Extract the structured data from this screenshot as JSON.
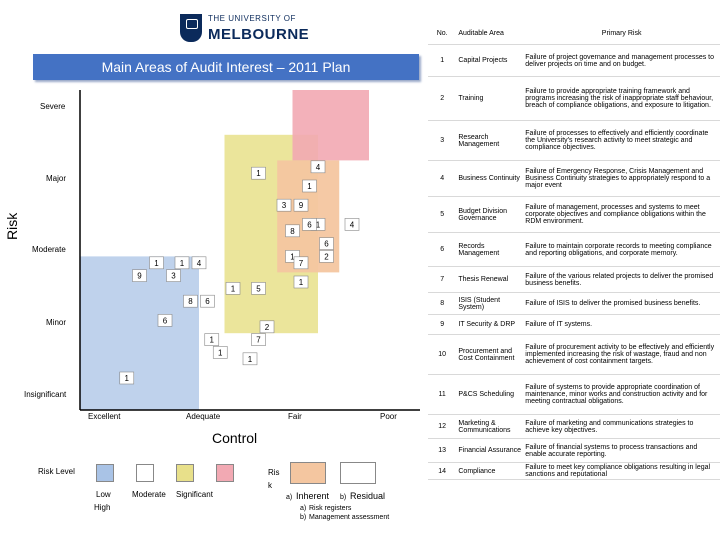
{
  "logo": {
    "line1": "THE UNIVERSITY OF",
    "line2": "MELBOURNE"
  },
  "title": "Main Areas of Audit Interest – 2011 Plan",
  "y_axis_title": "Risk",
  "x_axis_title": "Control",
  "y_levels": [
    "Severe",
    "Major",
    "Moderate",
    "Minor",
    "Insignificant"
  ],
  "x_levels": [
    "Excellent",
    "Adequate",
    "Fair",
    "Poor"
  ],
  "legend": {
    "title": "Risk Level",
    "items": [
      {
        "label": "Low",
        "color": "#a9c3e6"
      },
      {
        "label": "Moderate",
        "color": "#ffffff"
      },
      {
        "label": "Significant",
        "color": "#e8e08a"
      },
      {
        "label": "High",
        "color": "#f2a9b3"
      }
    ],
    "risk_word_1": "Ris",
    "risk_word_2": "k",
    "inherent_label": "Inherent",
    "residual_label": "Residual",
    "inherent_code": "a)",
    "residual_code": "b)",
    "note_1": "Risk registers",
    "note_2": "Management assessment",
    "note_1_code": "a)",
    "note_2_code": "b)"
  },
  "chart_data": {
    "type": "scatter",
    "title": "Main Areas of Audit Interest – 2011 Plan",
    "xlabel": "Control",
    "ylabel": "Risk",
    "x_categories": [
      "Excellent",
      "Adequate",
      "Fair",
      "Poor"
    ],
    "y_categories": [
      "Insignificant",
      "Minor",
      "Moderate",
      "Major",
      "Severe"
    ],
    "colors": {
      "inherent": "#f4c6a0",
      "residual": "#ffffff",
      "low": "#a9c3e6",
      "significant": "#e8e08a",
      "high": "#f2a9b3"
    },
    "points": [
      {
        "label": "1",
        "x": 1.4,
        "y": 2.3,
        "kind": "residual"
      },
      {
        "label": "1",
        "x": 1.7,
        "y": 2.3,
        "kind": "residual"
      },
      {
        "label": "1",
        "x": 2.6,
        "y": 3.7,
        "kind": "residual"
      },
      {
        "label": "1",
        "x": 3.1,
        "y": 2.0,
        "kind": "residual"
      },
      {
        "label": "1",
        "x": 3.3,
        "y": 2.9,
        "kind": "residual"
      },
      {
        "label": "1",
        "x": 3.2,
        "y": 3.5,
        "kind": "residual"
      },
      {
        "label": "1",
        "x": 2.3,
        "y": 1.9,
        "kind": "residual"
      },
      {
        "label": "1",
        "x": 2.05,
        "y": 1.1,
        "kind": "residual"
      },
      {
        "label": "1",
        "x": 3.0,
        "y": 2.4,
        "kind": "residual"
      },
      {
        "label": "1",
        "x": 2.15,
        "y": 0.9,
        "kind": "residual"
      },
      {
        "label": "1",
        "x": 2.5,
        "y": 0.8,
        "kind": "residual"
      },
      {
        "label": "1",
        "x": 1.05,
        "y": 0.5,
        "kind": "residual"
      },
      {
        "label": "2",
        "x": 2.7,
        "y": 1.3,
        "kind": "residual"
      },
      {
        "label": "2",
        "x": 3.4,
        "y": 2.4,
        "kind": "residual"
      },
      {
        "label": "3",
        "x": 2.9,
        "y": 3.2,
        "kind": "residual"
      },
      {
        "label": "3",
        "x": 1.6,
        "y": 2.1,
        "kind": "residual"
      },
      {
        "label": "4",
        "x": 3.3,
        "y": 3.8,
        "kind": "residual"
      },
      {
        "label": "4",
        "x": 1.9,
        "y": 2.3,
        "kind": "residual"
      },
      {
        "label": "4",
        "x": 3.7,
        "y": 2.9,
        "kind": "residual"
      },
      {
        "label": "5",
        "x": 2.6,
        "y": 1.9,
        "kind": "residual"
      },
      {
        "label": "6",
        "x": 3.2,
        "y": 2.9,
        "kind": "residual"
      },
      {
        "label": "6",
        "x": 3.4,
        "y": 2.6,
        "kind": "residual"
      },
      {
        "label": "6",
        "x": 2.0,
        "y": 1.7,
        "kind": "residual"
      },
      {
        "label": "6",
        "x": 1.5,
        "y": 1.4,
        "kind": "residual"
      },
      {
        "label": "7",
        "x": 3.1,
        "y": 2.3,
        "kind": "residual"
      },
      {
        "label": "7",
        "x": 2.6,
        "y": 1.1,
        "kind": "residual"
      },
      {
        "label": "8",
        "x": 3.0,
        "y": 2.8,
        "kind": "residual"
      },
      {
        "label": "8",
        "x": 1.8,
        "y": 1.7,
        "kind": "residual"
      },
      {
        "label": "9",
        "x": 3.1,
        "y": 3.2,
        "kind": "residual"
      },
      {
        "label": "9",
        "x": 1.2,
        "y": 2.1,
        "kind": "residual"
      }
    ]
  },
  "table": {
    "headers": {
      "no": "No.",
      "area": "Auditable Area",
      "risk": "Primary Risk"
    },
    "rows": [
      {
        "no": "1",
        "area": "Capital Projects",
        "risk": "Failure of project governance and management processes to deliver projects on time and on budget."
      },
      {
        "no": "2",
        "area": "Training",
        "risk": "Failure to provide appropriate training framework and programs increasing the risk of inappropriate staff behaviour, breach of compliance obligations, and exposure to litigation."
      },
      {
        "no": "3",
        "area": "Research Management",
        "risk": "Failure of processes to effectively and efficiently coordinate the University's research activity to meet strategic and compliance objectives."
      },
      {
        "no": "4",
        "area": "Business Continuity",
        "risk": "Failure of Emergency Response, Crisis Management and Business Continuity strategies to appropriately respond to a major event"
      },
      {
        "no": "5",
        "area": "Budget Division Governance",
        "risk": "Failure of management, processes and systems to meet corporate objectives and compliance obligations within the RDM environment."
      },
      {
        "no": "6",
        "area": "Records Management",
        "risk": "Failure to maintain corporate records to meeting compliance and reporting obligations, and corporate memory."
      },
      {
        "no": "7",
        "area": "Thesis Renewal",
        "risk": "Failure of the various related projects to deliver the promised business benefits."
      },
      {
        "no": "8",
        "area": "ISIS (Student System)",
        "risk": "Failure of ISIS to deliver the promised business benefits."
      },
      {
        "no": "9",
        "area": "IT Security & DRP",
        "risk": "Failure of IT systems."
      },
      {
        "no": "10",
        "area": "Procurement and Cost Containment",
        "risk": "Failure of procurement activity to be effectively and efficiently implemented increasing the risk of wastage, fraud and non achievement of cost containment targets."
      },
      {
        "no": "11",
        "area": "P&CS Scheduling",
        "risk": "Failure of systems to provide appropriate coordination of maintenance, minor works and construction activity and for meeting contractual obligations."
      },
      {
        "no": "12",
        "area": "Marketing & Communications",
        "risk": "Failure of marketing and communications strategies to achieve key objectives."
      },
      {
        "no": "13",
        "area": "Financial Assurance",
        "risk": "Failure of financial systems to process transactions and enable accurate reporting."
      },
      {
        "no": "14",
        "area": "Compliance",
        "risk": "Failure to meet key compliance obligations resulting in legal sanctions and reputational"
      }
    ]
  }
}
